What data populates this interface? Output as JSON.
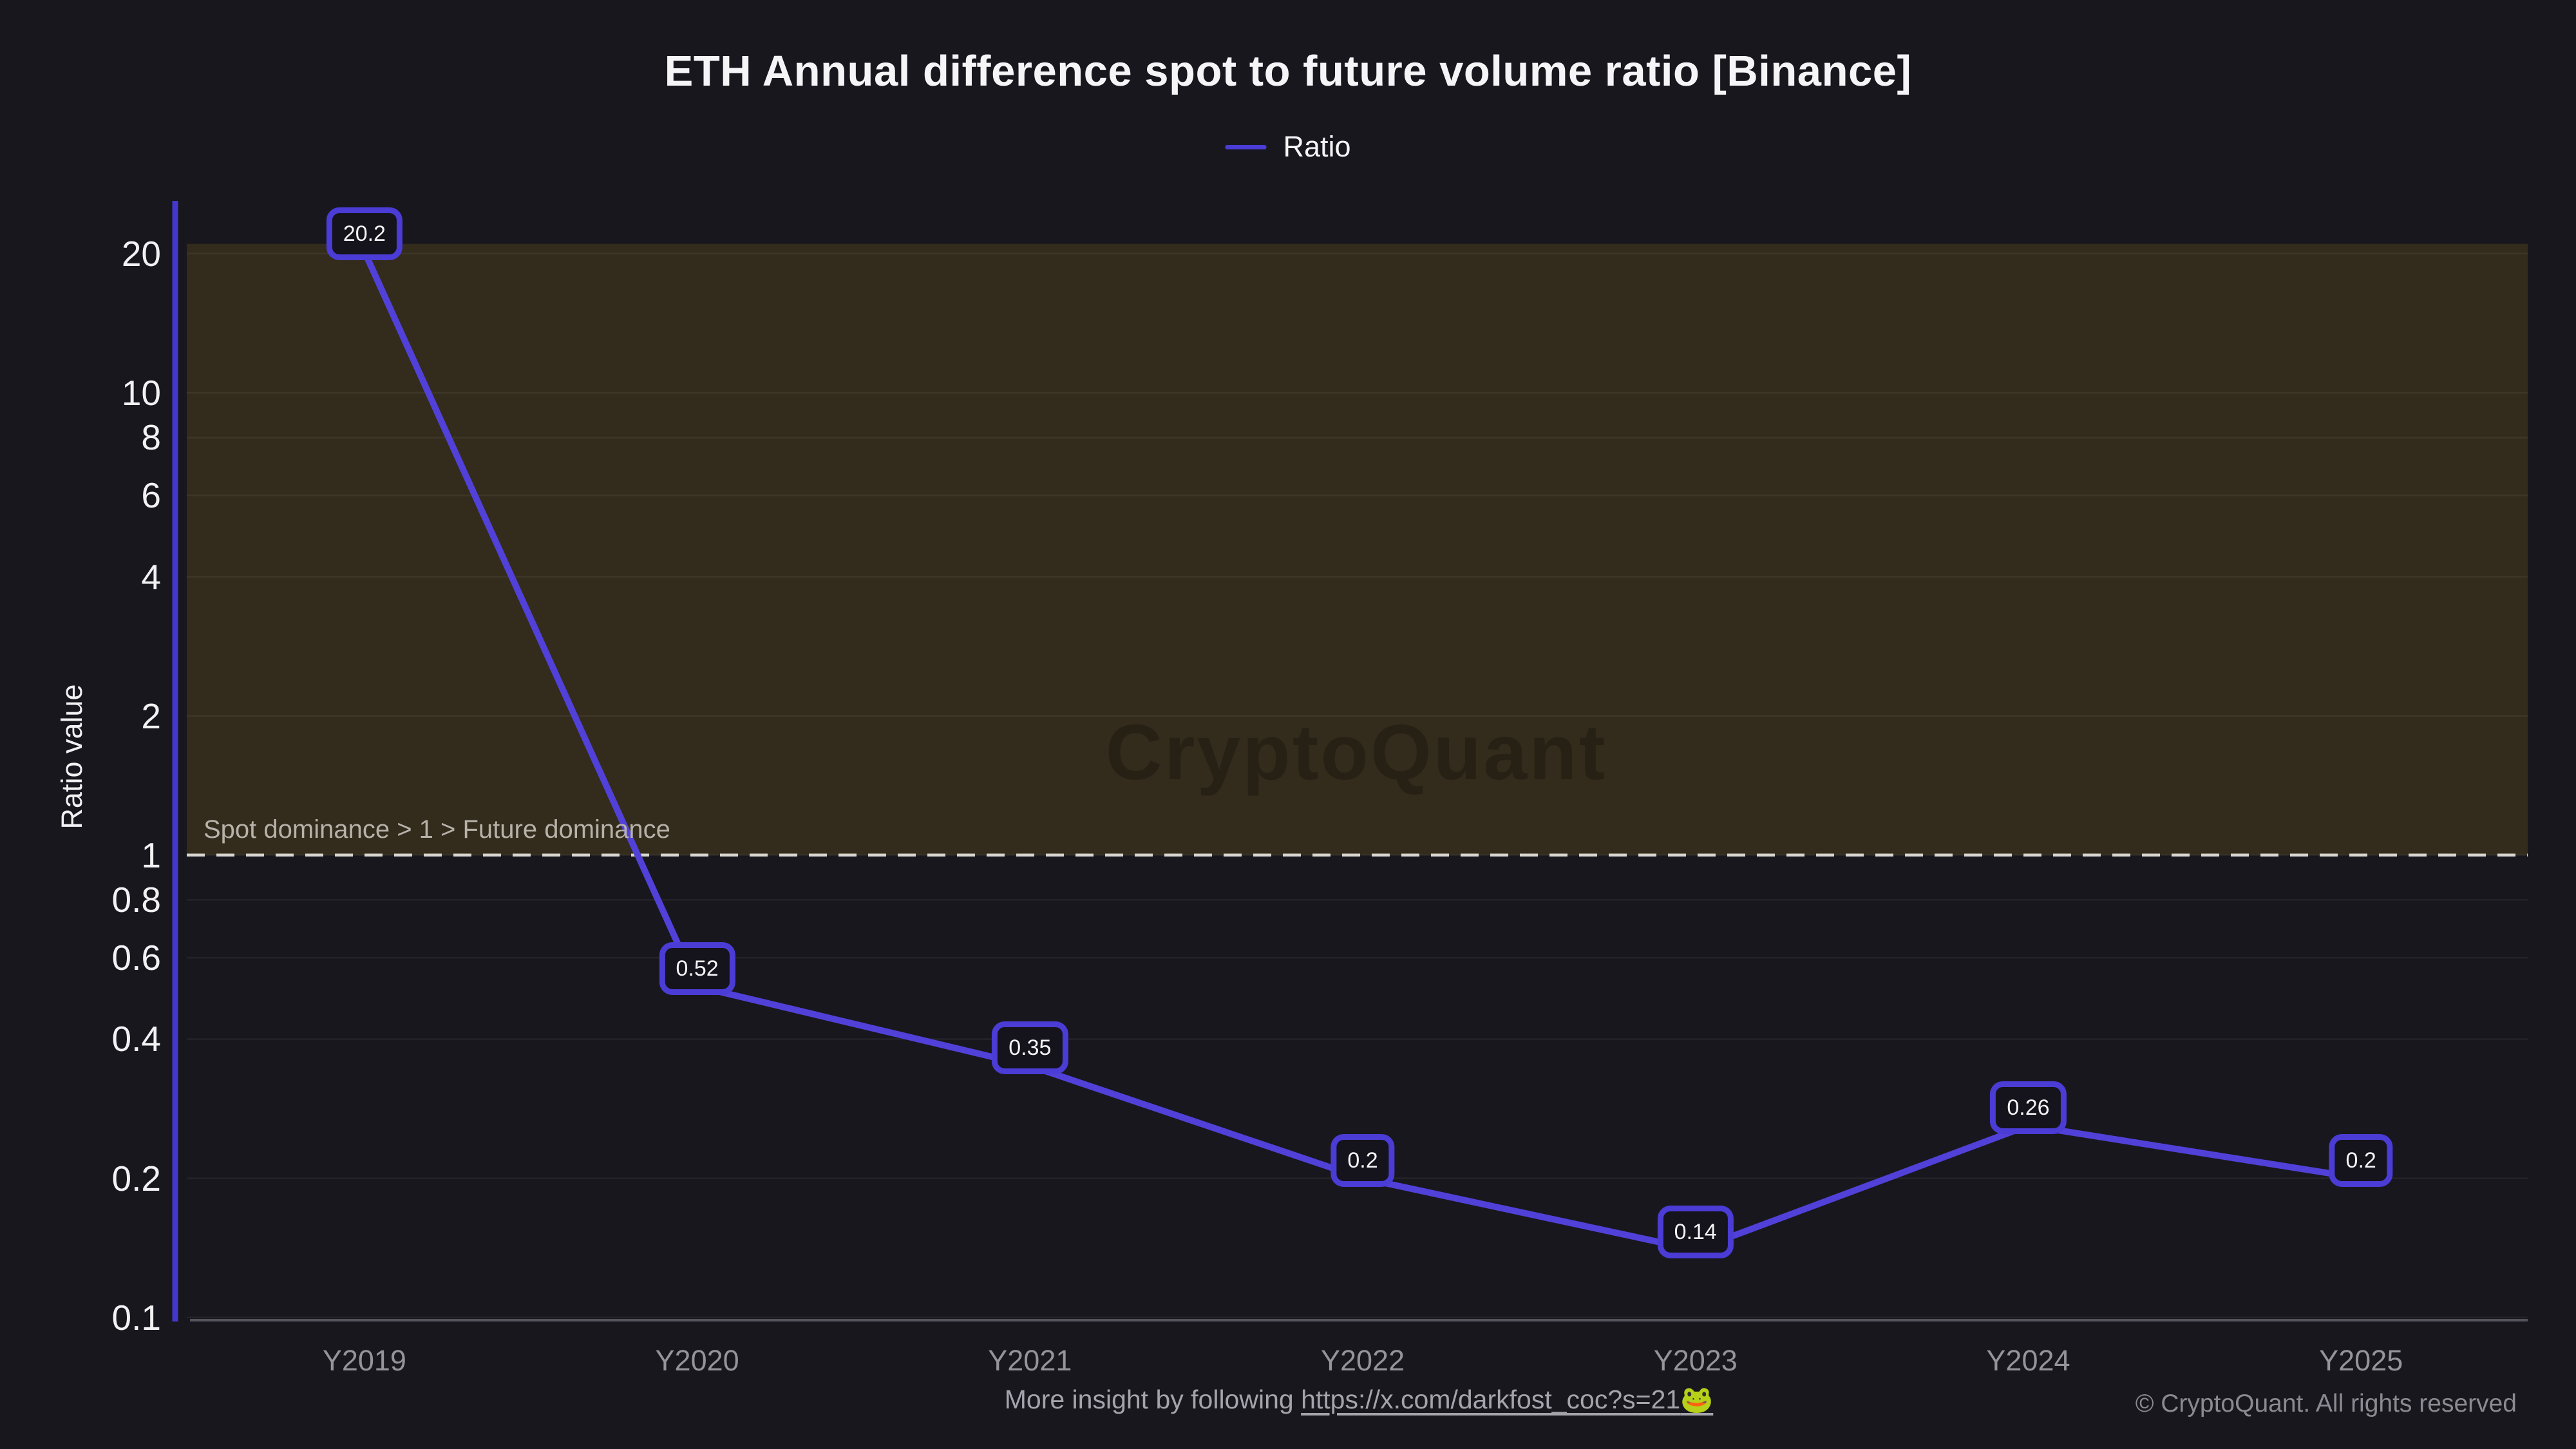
{
  "title": "ETH Annual difference spot to future volume ratio [Binance]",
  "legend": {
    "label": "Ratio"
  },
  "watermark": "CryptoQuant",
  "annotation": "Spot dominance > 1 > Future dominance",
  "footer": {
    "more_insight_prefix": "More insight by following ",
    "link": "https://x.com/darkfost_coc?s=21",
    "link_emoji": "🐸",
    "copyright": "© CryptoQuant. All rights reserved"
  },
  "chart_data": {
    "type": "line",
    "title": "ETH Annual difference spot to future volume ratio [Binance]",
    "xlabel": "",
    "ylabel": "Ratio value",
    "yscale": "log",
    "ylim": [
      0.098,
      26
    ],
    "categories": [
      "Y2019",
      "Y2020",
      "Y2021",
      "Y2022",
      "Y2023",
      "Y2024",
      "Y2025"
    ],
    "series": [
      {
        "name": "Ratio",
        "values": [
          20.2,
          0.52,
          0.35,
          0.2,
          0.14,
          0.26,
          0.2
        ]
      }
    ],
    "point_labels": [
      "20.2",
      "0.52",
      "0.35",
      "0.2",
      "0.14",
      "0.26",
      "0.2"
    ],
    "yticks": {
      "values": [
        20,
        10,
        8,
        6,
        4,
        2,
        1,
        0.8,
        0.6,
        0.4,
        0.2,
        0.1
      ],
      "labels": [
        "20",
        "10",
        "8",
        "6",
        "4",
        "2",
        "1",
        "0.8",
        "0.6",
        "0.4",
        "0.2",
        "0.1"
      ]
    },
    "grid": true,
    "legend_position": "top-center",
    "band": {
      "from": 1,
      "to": 21
    },
    "reference_line": {
      "y": 1,
      "style": "dashed"
    }
  },
  "colors": {
    "background": "#18171e",
    "accent_line": "#5141d8",
    "label_box_border": "#4a3cd4",
    "label_box_bg": "#15131b",
    "label_box_text": "#f4f4f6",
    "band": "#332b1b",
    "dashed_line": "#d9d6d1",
    "grid": "rgba(255,255,255,0.055)",
    "axis_spine": "#4338cc",
    "bottom_spine": "#55545c",
    "y_tick_label": "#f2f2f4",
    "x_tick_label": "#95949c",
    "annotation_text": "#b6b2aa",
    "footer_text": "#a5a4ac",
    "copyright_text": "#8b8a92",
    "title_text": "#f5f5f7",
    "legend_text": "#f5f5f7",
    "watermark_text": "rgba(0,0,0,0.22)"
  }
}
